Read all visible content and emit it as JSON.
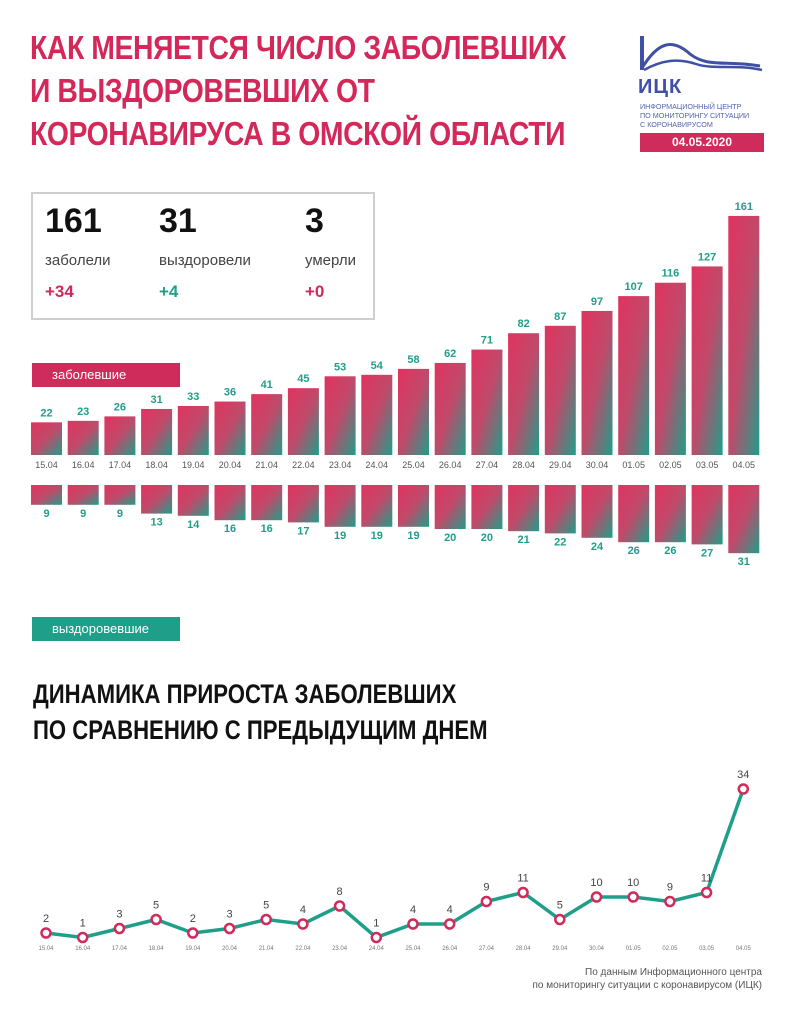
{
  "header": {
    "title_lines": [
      "КАК МЕНЯЕТСЯ ЧИСЛО ЗАБОЛЕВШИХ",
      "И ВЫЗДОРОВЕВШИХ ОТ",
      "КОРОНАВИРУСА В ОМСКОЙ ОБЛАСТИ"
    ]
  },
  "logo": {
    "name": "ИЦК",
    "subtitle_lines": [
      "ИНФОРМАЦИОННЫЙ ЦЕНТР",
      "ПО МОНИТОРИНГУ СИТУАЦИИ",
      "С КОРОНАВИРУСОМ"
    ],
    "date": "04.05.2020",
    "icon": "mountain-wave-logo-icon"
  },
  "stats": [
    {
      "value": "161",
      "label": "заболели",
      "delta": "+34",
      "color": "#d4285a"
    },
    {
      "value": "31",
      "label": "выздоровели",
      "delta": "+4",
      "color": "#1f9e8a"
    },
    {
      "value": "3",
      "label": "умерли",
      "delta": "+0",
      "color": "#d4285a"
    }
  ],
  "legend": {
    "sick_label": "заболевшие",
    "recovered_label": "выздоровевшие"
  },
  "colors": {
    "accent_red": "#cf2b5b",
    "accent_teal": "#1f9e8a",
    "brand_blue": "#3f50a5"
  },
  "subtitle_lines": [
    "ДИНАМИКА ПРИРОСТА ЗАБОЛЕВШИХ",
    "ПО СРАВНЕНИЮ С ПРЕДЫДУЩИМ ДНЕМ"
  ],
  "source_lines": [
    "По данным Информационного центра",
    "по мониторингу ситуации с коронавирусом (ИЦК)"
  ],
  "chart_data": [
    {
      "type": "bar",
      "categories": [
        "15.04",
        "16.04",
        "17.04",
        "18.04",
        "19.04",
        "20.04",
        "21.04",
        "22.04",
        "23.04",
        "24.04",
        "25.04",
        "26.04",
        "27.04",
        "28.04",
        "29.04",
        "30.04",
        "01.05",
        "02.05",
        "03.05",
        "04.05"
      ],
      "series": [
        {
          "name": "заболевшие",
          "values": [
            22,
            23,
            26,
            31,
            33,
            36,
            41,
            45,
            53,
            54,
            58,
            62,
            71,
            82,
            87,
            97,
            107,
            116,
            127,
            161
          ]
        },
        {
          "name": "выздоровевшие",
          "values": [
            9,
            9,
            9,
            13,
            14,
            16,
            16,
            17,
            19,
            19,
            19,
            20,
            20,
            21,
            22,
            24,
            26,
            26,
            27,
            31
          ]
        }
      ]
    },
    {
      "type": "line",
      "title": "ДИНАМИКА ПРИРОСТА ЗАБОЛЕВШИХ ПО СРАВНЕНИЮ С ПРЕДЫДУЩИМ ДНЕМ",
      "categories": [
        "15.04",
        "16.04",
        "17.04",
        "18.04",
        "19.04",
        "20.04",
        "21.04",
        "22.04",
        "23.04",
        "24.04",
        "25.04",
        "26.04",
        "27.04",
        "28.04",
        "29.04",
        "30.04",
        "01.05",
        "02.05",
        "03.05",
        "04.05"
      ],
      "values": [
        2,
        1,
        3,
        5,
        2,
        3,
        5,
        4,
        8,
        1,
        4,
        4,
        9,
        11,
        5,
        10,
        10,
        9,
        11,
        34
      ]
    }
  ]
}
